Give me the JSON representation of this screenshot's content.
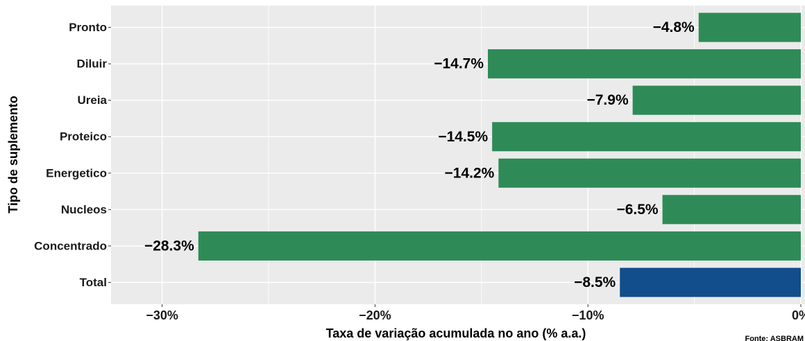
{
  "chart_data": {
    "type": "barh",
    "categories": [
      "Pronto",
      "Diluir",
      "Ureia",
      "Proteico",
      "Energetico",
      "Nucleos",
      "Concentrado",
      "Total"
    ],
    "values": [
      -4.8,
      -14.7,
      -7.9,
      -14.5,
      -14.2,
      -6.5,
      -28.3,
      -8.5
    ],
    "value_labels": [
      "−4.8%",
      "−14.7%",
      "−7.9%",
      "−14.5%",
      "−14.2%",
      "−6.5%",
      "−28.3%",
      "−8.5%"
    ],
    "colors": [
      "#2e8b57",
      "#2e8b57",
      "#2e8b57",
      "#2e8b57",
      "#2e8b57",
      "#2e8b57",
      "#2e8b57",
      "#124e8c"
    ],
    "xlim": [
      -32.4,
      0
    ],
    "xticks": [
      {
        "value": -30,
        "label": "−30%"
      },
      {
        "value": -20,
        "label": "−20%"
      },
      {
        "value": -10,
        "label": "−10%"
      },
      {
        "value": 0,
        "label": "0%"
      }
    ],
    "xlabel": "Taxa de variação acumulada no ano (% a.a.)",
    "ylabel": "Tipo de suplemento",
    "caption": "Fonte: ASBRAM",
    "grid": true
  }
}
